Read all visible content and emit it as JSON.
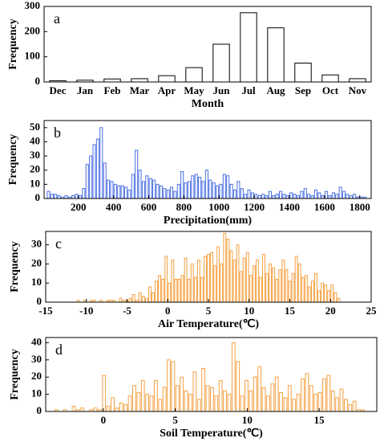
{
  "chart_data": [
    {
      "type": "bar",
      "letter": "a",
      "ylabel": "Frequency",
      "xlabel": "Month",
      "color": "#000000",
      "categories": [
        "Dec",
        "Jan",
        "Feb",
        "Mar",
        "Apr",
        "May",
        "Jun",
        "Jul",
        "Aug",
        "Sep",
        "Oct",
        "Nov"
      ],
      "values": [
        5,
        7,
        12,
        13,
        25,
        57,
        150,
        275,
        215,
        75,
        28,
        13
      ],
      "ylim": [
        0,
        300
      ],
      "yticks": [
        0,
        100,
        200,
        300
      ]
    },
    {
      "type": "histogram",
      "letter": "b",
      "ylabel": "Frequency",
      "xlabel": "Precipitation(mm)",
      "color": "#4a6fe3",
      "bins": [
        20,
        40,
        60,
        80,
        100,
        120,
        140,
        160,
        180,
        200,
        220,
        240,
        260,
        280,
        300,
        320,
        340,
        360,
        380,
        400,
        420,
        440,
        460,
        480,
        500,
        520,
        540,
        560,
        580,
        600,
        620,
        640,
        660,
        680,
        700,
        720,
        740,
        760,
        780,
        800,
        820,
        840,
        860,
        880,
        900,
        920,
        940,
        960,
        980,
        1000,
        1020,
        1040,
        1060,
        1080,
        1100,
        1120,
        1140,
        1160,
        1180,
        1200,
        1220,
        1240,
        1260,
        1280,
        1300,
        1320,
        1340,
        1360,
        1380,
        1400,
        1420,
        1440,
        1460,
        1480,
        1500,
        1520,
        1540,
        1560,
        1580,
        1600,
        1620,
        1640,
        1660,
        1680,
        1700,
        1720,
        1740,
        1760,
        1780,
        1800,
        1820,
        1840
      ],
      "values": [
        5,
        3,
        3,
        2,
        1,
        2,
        1,
        2,
        3,
        2,
        7,
        24,
        30,
        38,
        42,
        50,
        25,
        13,
        12,
        10,
        9,
        9,
        8,
        6,
        17,
        34,
        20,
        12,
        16,
        14,
        13,
        10,
        9,
        7,
        6,
        8,
        5,
        10,
        19,
        11,
        12,
        16,
        17,
        15,
        12,
        20,
        13,
        11,
        9,
        10,
        17,
        16,
        10,
        6,
        12,
        7,
        3,
        6,
        4,
        3,
        2,
        3,
        2,
        5,
        2,
        3,
        5,
        3,
        2,
        4,
        3,
        2,
        5,
        7,
        3,
        2,
        6,
        4,
        2,
        5,
        2,
        4,
        3,
        8,
        5,
        3,
        2,
        3,
        1,
        1,
        1
      ],
      "xlim": [
        5,
        1865
      ],
      "xticks": [
        200,
        400,
        600,
        800,
        1000,
        1200,
        1400,
        1600,
        1800
      ],
      "ylim": [
        0,
        55
      ],
      "yticks": [
        0,
        10,
        20,
        30,
        40,
        50
      ]
    },
    {
      "type": "histogram",
      "letter": "c",
      "ylabel": "Frequency",
      "xlabel": "Air Temperature(℃)",
      "color": "#f5a040",
      "bins": [
        -11.2,
        -10.8,
        -10.4,
        -10,
        -9.6,
        -9.2,
        -8.8,
        -8.4,
        -8,
        -7.6,
        -7.2,
        -6.8,
        -6.4,
        -6,
        -5.6,
        -5.2,
        -4.8,
        -4.4,
        -4,
        -3.6,
        -3.2,
        -2.8,
        -2.4,
        -2,
        -1.6,
        -1.2,
        -0.8,
        -0.4,
        0,
        0.4,
        0.8,
        1.2,
        1.6,
        2,
        2.4,
        2.8,
        3.2,
        3.6,
        4,
        4.4,
        4.8,
        5.2,
        5.6,
        6,
        6.4,
        6.8,
        7.2,
        7.6,
        8,
        8.4,
        8.8,
        9.2,
        9.6,
        10,
        10.4,
        10.8,
        11.2,
        11.6,
        12,
        12.4,
        12.8,
        13.2,
        13.6,
        14,
        14.4,
        14.8,
        15.2,
        15.6,
        16,
        16.4,
        16.8,
        17.2,
        17.6,
        18,
        18.4,
        18.8,
        19.2,
        19.6,
        20,
        20.4,
        20.8,
        21.2
      ],
      "values": [
        1,
        0,
        1,
        0,
        1,
        1,
        0,
        1,
        0,
        1,
        1,
        1,
        0,
        2,
        1,
        1,
        2,
        4,
        1,
        5,
        3,
        2,
        8,
        5,
        11,
        14,
        12,
        24,
        10,
        22,
        12,
        12,
        14,
        23,
        12,
        20,
        13,
        22,
        13,
        24,
        25,
        26,
        19,
        29,
        20,
        36,
        33,
        27,
        22,
        30,
        16,
        23,
        26,
        14,
        19,
        22,
        13,
        25,
        15,
        20,
        18,
        12,
        17,
        22,
        17,
        11,
        15,
        24,
        20,
        13,
        14,
        8,
        11,
        15,
        6,
        10,
        9,
        6,
        9,
        5,
        2
      ],
      "xlim": [
        -15,
        25
      ],
      "xticks": [
        -15,
        -10,
        -5,
        0,
        5,
        10,
        15,
        20,
        25
      ],
      "ylim": [
        0,
        37
      ],
      "yticks": [
        0,
        10,
        20,
        30
      ]
    },
    {
      "type": "histogram",
      "letter": "d",
      "ylabel": "Frequency",
      "xlabel": "Soil Temperature(℃)",
      "color": "#f5a040",
      "bins": [
        -3.4,
        -3.1,
        -2.8,
        -2.5,
        -2.2,
        -1.9,
        -1.6,
        -1.3,
        -1,
        -0.7,
        -0.4,
        -0.1,
        0.2,
        0.5,
        0.8,
        1.1,
        1.4,
        1.7,
        2,
        2.3,
        2.6,
        2.9,
        3.2,
        3.5,
        3.8,
        4.1,
        4.4,
        4.7,
        5,
        5.3,
        5.6,
        5.9,
        6.2,
        6.5,
        6.8,
        7.1,
        7.4,
        7.7,
        8,
        8.3,
        8.6,
        8.9,
        9.2,
        9.5,
        9.8,
        10.1,
        10.4,
        10.7,
        11,
        11.3,
        11.6,
        11.9,
        12.2,
        12.5,
        12.8,
        13.1,
        13.4,
        13.7,
        14,
        14.3,
        14.6,
        14.9,
        15.2,
        15.5,
        15.8,
        16.1,
        16.4,
        16.7,
        17,
        17.3,
        17.6,
        17.9,
        18.2
      ],
      "values": [
        1,
        0,
        1,
        0,
        3,
        1,
        2,
        0,
        1,
        2,
        1,
        21,
        3,
        8,
        2,
        5,
        4,
        9,
        15,
        11,
        18,
        10,
        9,
        18,
        7,
        14,
        30,
        29,
        15,
        20,
        12,
        10,
        23,
        7,
        25,
        15,
        14,
        9,
        18,
        12,
        10,
        40,
        29,
        9,
        18,
        12,
        20,
        26,
        14,
        9,
        16,
        20,
        11,
        8,
        15,
        7,
        10,
        19,
        22,
        15,
        10,
        11,
        19,
        21,
        12,
        8,
        13,
        7,
        4,
        6,
        1,
        1
      ],
      "xlim": [
        -4,
        19
      ],
      "xticks": [
        0,
        5,
        10,
        15
      ],
      "ylim": [
        0,
        43
      ],
      "yticks": [
        0,
        10,
        20,
        30,
        40
      ]
    }
  ]
}
